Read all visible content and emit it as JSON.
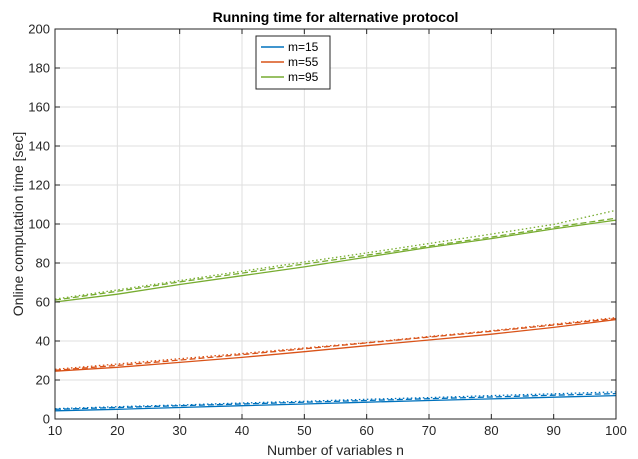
{
  "chart_data": {
    "type": "line",
    "title": "Running time for alternative protocol",
    "xlabel": "Number of variables n",
    "ylabel": "Online computation time [sec]",
    "xlim": [
      10,
      100
    ],
    "ylim": [
      0,
      200
    ],
    "xticks": [
      10,
      20,
      30,
      40,
      50,
      60,
      70,
      80,
      90,
      100
    ],
    "yticks": [
      0,
      20,
      40,
      60,
      80,
      100,
      120,
      140,
      160,
      180,
      200
    ],
    "grid": true,
    "legend_position": "top",
    "x": [
      10,
      20,
      30,
      40,
      50,
      60,
      70,
      80,
      90,
      100
    ],
    "series": [
      {
        "name": "m=15",
        "color": "#0072BD",
        "style": "solid",
        "values": [
          4.2,
          5.0,
          5.9,
          6.8,
          7.7,
          8.6,
          9.5,
          10.3,
          11.2,
          12.0
        ]
      },
      {
        "name": "",
        "color": "#0072BD",
        "style": "dashed",
        "values": [
          5.0,
          5.9,
          6.8,
          7.7,
          8.6,
          9.5,
          10.4,
          11.3,
          12.2,
          13.0
        ]
      },
      {
        "name": "",
        "color": "#0072BD",
        "style": "dotted",
        "values": [
          5.3,
          6.3,
          7.2,
          8.2,
          9.1,
          10.1,
          11.0,
          12.0,
          12.9,
          13.9
        ]
      },
      {
        "name": "m=55",
        "color": "#D95319",
        "style": "solid",
        "values": [
          24.5,
          26.5,
          29.0,
          31.6,
          34.5,
          37.6,
          40.5,
          43.5,
          47.0,
          51.0
        ]
      },
      {
        "name": "",
        "color": "#D95319",
        "style": "dashed",
        "values": [
          25.0,
          27.5,
          30.2,
          33.0,
          36.0,
          39.0,
          42.0,
          45.0,
          48.2,
          51.5
        ]
      },
      {
        "name": "",
        "color": "#D95319",
        "style": "dotted",
        "values": [
          25.5,
          28.2,
          30.9,
          33.6,
          36.4,
          39.2,
          42.3,
          45.3,
          48.6,
          52.0
        ]
      },
      {
        "name": "m=95",
        "color": "#77AC30",
        "style": "solid",
        "values": [
          60.0,
          64.0,
          69.0,
          73.5,
          78.0,
          83.0,
          88.0,
          92.5,
          97.5,
          102.0
        ]
      },
      {
        "name": "",
        "color": "#77AC30",
        "style": "dashed",
        "values": [
          61.0,
          65.5,
          70.3,
          74.8,
          79.5,
          84.0,
          88.7,
          93.3,
          98.3,
          103.0
        ]
      },
      {
        "name": "",
        "color": "#77AC30",
        "style": "dotted",
        "values": [
          61.5,
          66.2,
          71.0,
          75.8,
          80.5,
          85.2,
          90.0,
          94.8,
          99.8,
          107.0
        ]
      }
    ]
  }
}
